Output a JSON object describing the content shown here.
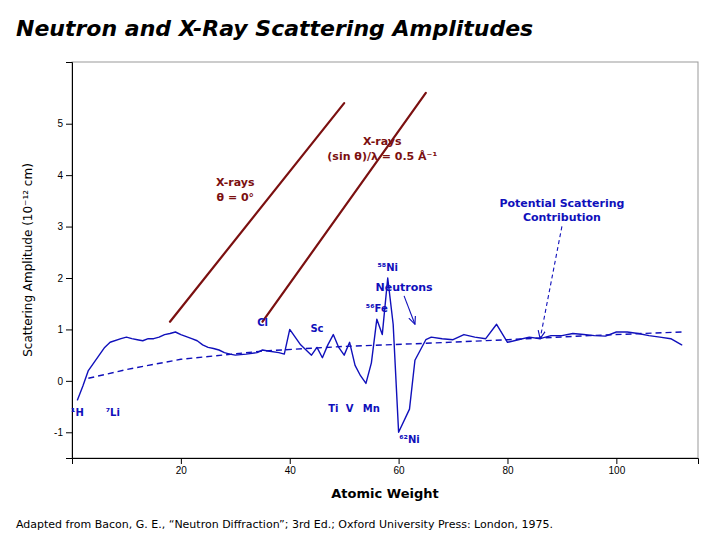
{
  "chart_data": {
    "type": "line",
    "title": "Neutron and X-Ray Scattering Amplitudes",
    "x_label": "Atomic Weight",
    "y_label": "Scattering Amplitude (10⁻¹² cm)",
    "caption": "Adapted from Bacon, G. E., “Neutron Diffraction”; 3rd Ed.; Oxford University Press: London, 1975.",
    "xlim": [
      0,
      115
    ],
    "ylim": [
      -1.5,
      6.2
    ],
    "xticks": [
      20,
      40,
      60,
      80,
      100
    ],
    "yticks": [
      -1,
      0,
      1,
      2,
      3,
      4,
      5
    ],
    "series": [
      {
        "color": "#7B1010",
        "line_style": "solid",
        "x": [
          18,
          50
        ],
        "values": [
          1.15,
          5.4
        ]
      },
      {
        "color": "#7B1010",
        "line_style": "solid",
        "x": [
          35,
          65
        ],
        "values": [
          1.15,
          5.6
        ]
      },
      {
        "color": "#1010BB",
        "line_style": "solid",
        "x": [
          1,
          2,
          3,
          5,
          6,
          7,
          9,
          10,
          11,
          12,
          13,
          14,
          15,
          16,
          17,
          18,
          19,
          20,
          22,
          23,
          24,
          25,
          26,
          27,
          28,
          29,
          30,
          32,
          34,
          35,
          36,
          38,
          39,
          40,
          41,
          42,
          44,
          45,
          46,
          47,
          48,
          49,
          50,
          51,
          52,
          53,
          54,
          55,
          56,
          57,
          58,
          59,
          60,
          62,
          63,
          64,
          65,
          66,
          68,
          70,
          72,
          74,
          76,
          78,
          80,
          82,
          84,
          86,
          88,
          90,
          92,
          94,
          96,
          98,
          100,
          102,
          104,
          106,
          108,
          110,
          112
        ],
        "values": [
          -0.37,
          -0.1,
          0.2,
          0.5,
          0.65,
          0.75,
          0.82,
          0.85,
          0.82,
          0.8,
          0.78,
          0.82,
          0.82,
          0.85,
          0.9,
          0.92,
          0.95,
          0.9,
          0.82,
          0.78,
          0.7,
          0.65,
          0.63,
          0.6,
          0.55,
          0.52,
          0.5,
          0.52,
          0.55,
          0.6,
          0.58,
          0.55,
          0.52,
          1.0,
          0.85,
          0.7,
          0.5,
          0.65,
          0.45,
          0.7,
          0.9,
          0.65,
          0.5,
          0.75,
          0.3,
          0.1,
          -0.05,
          0.35,
          1.2,
          0.9,
          2.0,
          1.1,
          -1.0,
          -0.55,
          0.4,
          0.6,
          0.8,
          0.85,
          0.82,
          0.8,
          0.9,
          0.85,
          0.82,
          1.1,
          0.75,
          0.8,
          0.85,
          0.82,
          0.88,
          0.88,
          0.92,
          0.9,
          0.88,
          0.87,
          0.95,
          0.95,
          0.92,
          0.88,
          0.85,
          0.82,
          0.7
        ]
      },
      {
        "color": "#1010BB",
        "line_style": "dashed",
        "x": [
          3,
          10,
          20,
          35,
          50,
          65,
          80,
          95,
          112
        ],
        "values": [
          0.05,
          0.22,
          0.42,
          0.58,
          0.67,
          0.73,
          0.8,
          0.88,
          0.95
        ]
      }
    ],
    "annotations": [
      {
        "text": "¹H",
        "x": 1,
        "y": -0.62,
        "color": "#1010BB"
      },
      {
        "text": "⁷Li",
        "x": 7.5,
        "y": -0.62,
        "color": "#1010BB"
      },
      {
        "text": "Cl",
        "x": 35,
        "y": 1.12,
        "color": "#1010BB"
      },
      {
        "text": "Sc",
        "x": 45,
        "y": 1.0,
        "color": "#1010BB"
      },
      {
        "text": "⁵⁶Fe",
        "x": 56,
        "y": 1.4,
        "color": "#1010BB"
      },
      {
        "text": "⁵⁸Ni",
        "x": 58,
        "y": 2.2,
        "color": "#1010BB"
      },
      {
        "text": "Ti",
        "x": 48,
        "y": -0.55,
        "color": "#1010BB"
      },
      {
        "text": "V",
        "x": 51,
        "y": -0.55,
        "color": "#1010BB"
      },
      {
        "text": "Mn",
        "x": 55,
        "y": -0.55,
        "color": "#1010BB"
      },
      {
        "text": "⁶²Ni",
        "x": 62,
        "y": -1.15,
        "color": "#1010BB"
      },
      {
        "text": "X-rays\nθ = 0°",
        "x": 30,
        "y": 3.5,
        "color": "#7B1010"
      },
      {
        "text": "X-rays\n(sin θ)/λ = 0.5 Å⁻¹",
        "x": 57,
        "y": 4.3,
        "color": "#7B1010"
      },
      {
        "text": "Neutrons",
        "x": 61,
        "y": 1.75,
        "arrow_x": 63,
        "arrow_y": 1.1,
        "line_style": "solid",
        "color": "#1010BB"
      },
      {
        "text": "Potential Scattering\nContribution",
        "x": 90,
        "y": 3.1,
        "arrow_x": 86,
        "arrow_y": 0.82,
        "line_style": "dashed",
        "color": "#1010BB"
      }
    ]
  }
}
